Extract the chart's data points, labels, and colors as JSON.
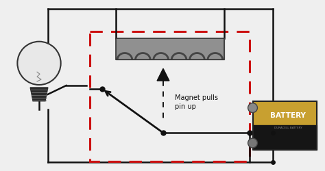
{
  "bg_color": "#efefef",
  "wire_color": "#111111",
  "wire_lw": 1.8,
  "dashed_box_color": "#cc1111",
  "coil_body_color": "#909090",
  "coil_wire_color": "#444444",
  "battery_gold": "#c8a030",
  "battery_black": "#151515",
  "battery_text": "BATTERY",
  "battery_subtext": "DURACELL BATTERY",
  "annotation_text": "Magnet pulls\npin up",
  "dot_color": "#111111"
}
